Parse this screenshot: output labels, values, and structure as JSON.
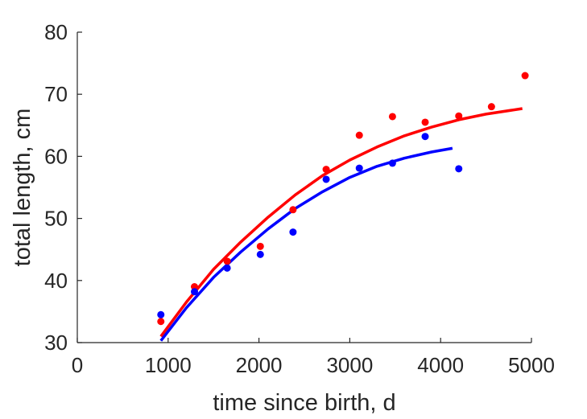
{
  "chart_data": {
    "type": "scatter",
    "title": "",
    "xlabel": "time since birth, d",
    "ylabel": "total length, cm",
    "xlim": [
      0,
      5000
    ],
    "ylim": [
      30,
      80
    ],
    "xticks": [
      0,
      1000,
      2000,
      3000,
      4000,
      5000
    ],
    "yticks": [
      30,
      40,
      50,
      60,
      70,
      80
    ],
    "grid": false,
    "legend": "none",
    "series": [
      {
        "color": "#ff0000",
        "points": [
          {
            "x": 920,
            "y": 33.4
          },
          {
            "x": 1290,
            "y": 39.0
          },
          {
            "x": 1650,
            "y": 43.1
          },
          {
            "x": 2015,
            "y": 45.5
          },
          {
            "x": 2375,
            "y": 51.4
          },
          {
            "x": 2740,
            "y": 57.9
          },
          {
            "x": 3105,
            "y": 63.4
          },
          {
            "x": 3470,
            "y": 66.4
          },
          {
            "x": 3830,
            "y": 65.5
          },
          {
            "x": 4200,
            "y": 66.5
          },
          {
            "x": 4560,
            "y": 68.0
          },
          {
            "x": 4930,
            "y": 73.0
          }
        ],
        "fit": [
          {
            "x": 920,
            "y": 31.0
          },
          {
            "x": 1200,
            "y": 36.5
          },
          {
            "x": 1500,
            "y": 41.8
          },
          {
            "x": 1800,
            "y": 46.2
          },
          {
            "x": 2100,
            "y": 50.2
          },
          {
            "x": 2400,
            "y": 53.8
          },
          {
            "x": 2700,
            "y": 56.9
          },
          {
            "x": 3000,
            "y": 59.4
          },
          {
            "x": 3300,
            "y": 61.5
          },
          {
            "x": 3600,
            "y": 63.3
          },
          {
            "x": 3900,
            "y": 64.7
          },
          {
            "x": 4200,
            "y": 65.9
          },
          {
            "x": 4500,
            "y": 66.8
          },
          {
            "x": 4900,
            "y": 67.7
          }
        ]
      },
      {
        "color": "#0000ff",
        "points": [
          {
            "x": 920,
            "y": 34.5
          },
          {
            "x": 1290,
            "y": 38.2
          },
          {
            "x": 1650,
            "y": 42.0
          },
          {
            "x": 2015,
            "y": 44.2
          },
          {
            "x": 2375,
            "y": 47.8
          },
          {
            "x": 2740,
            "y": 56.3
          },
          {
            "x": 3105,
            "y": 58.1
          },
          {
            "x": 3470,
            "y": 58.9
          },
          {
            "x": 3830,
            "y": 63.2
          },
          {
            "x": 4200,
            "y": 58.0
          }
        ],
        "fit": [
          {
            "x": 920,
            "y": 30.3
          },
          {
            "x": 1200,
            "y": 35.6
          },
          {
            "x": 1500,
            "y": 40.5
          },
          {
            "x": 1800,
            "y": 44.6
          },
          {
            "x": 2100,
            "y": 48.3
          },
          {
            "x": 2400,
            "y": 51.6
          },
          {
            "x": 2700,
            "y": 54.3
          },
          {
            "x": 3000,
            "y": 56.6
          },
          {
            "x": 3300,
            "y": 58.4
          },
          {
            "x": 3600,
            "y": 59.7
          },
          {
            "x": 3900,
            "y": 60.7
          },
          {
            "x": 4130,
            "y": 61.3
          }
        ]
      }
    ]
  }
}
